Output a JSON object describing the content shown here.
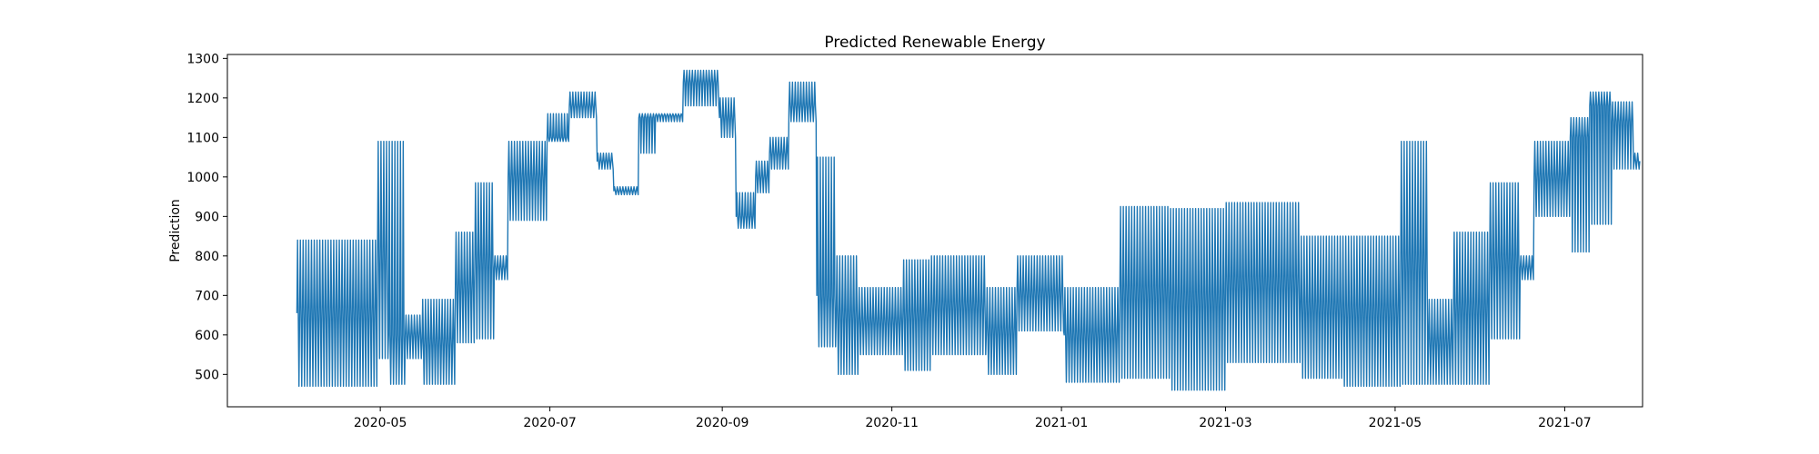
{
  "chart_data": {
    "type": "line",
    "title": "Predicted Renewable Energy",
    "xlabel": "",
    "ylabel": "Prediction",
    "grid": false,
    "color": "#1f77b4",
    "xlim": [
      "2020-03-07",
      "2021-07-29"
    ],
    "ylim": [
      418,
      1310
    ],
    "xticks": [
      "2020-05",
      "2020-07",
      "2020-09",
      "2020-11",
      "2021-01",
      "2021-03",
      "2021-05",
      "2021-07"
    ],
    "yticks": [
      500,
      600,
      700,
      800,
      900,
      1000,
      1100,
      1200,
      1300
    ],
    "series": [
      {
        "segments": [
          {
            "start": "2020-04-01",
            "end": "2020-04-30",
            "low": 470,
            "high": 840
          },
          {
            "start": "2020-04-30",
            "end": "2020-05-04",
            "low": 540,
            "high": 1090,
            "base": 800
          },
          {
            "start": "2020-05-04",
            "end": "2020-05-10",
            "low": 475,
            "high": 1090,
            "base": 600
          },
          {
            "start": "2020-05-10",
            "end": "2020-05-16",
            "low": 540,
            "high": 650,
            "base": 600
          },
          {
            "start": "2020-05-16",
            "end": "2020-05-28",
            "low": 475,
            "high": 690
          },
          {
            "start": "2020-05-28",
            "end": "2020-06-04",
            "low": 580,
            "high": 860
          },
          {
            "start": "2020-06-04",
            "end": "2020-06-11",
            "low": 590,
            "high": 985
          },
          {
            "start": "2020-06-11",
            "end": "2020-06-16",
            "low": 740,
            "high": 800,
            "base": 770
          },
          {
            "start": "2020-06-16",
            "end": "2020-06-30",
            "low": 890,
            "high": 1090,
            "base": 1000
          },
          {
            "start": "2020-06-30",
            "end": "2020-07-08",
            "low": 1090,
            "high": 1160,
            "base": 1100
          },
          {
            "start": "2020-07-08",
            "end": "2020-07-18",
            "low": 1150,
            "high": 1215,
            "base": 1180
          },
          {
            "start": "2020-07-18",
            "end": "2020-07-24",
            "low": 1020,
            "high": 1060,
            "base": 1040
          },
          {
            "start": "2020-07-24",
            "end": "2020-08-02",
            "low": 955,
            "high": 975,
            "base": 965
          },
          {
            "start": "2020-08-02",
            "end": "2020-08-08",
            "low": 1060,
            "high": 1160,
            "base": 1150
          },
          {
            "start": "2020-08-08",
            "end": "2020-08-18",
            "low": 1140,
            "high": 1160,
            "base": 1155
          },
          {
            "start": "2020-08-18",
            "end": "2020-08-31",
            "low": 1180,
            "high": 1270,
            "base": 1240
          },
          {
            "start": "2020-08-31",
            "end": "2020-09-06",
            "low": 1100,
            "high": 1200,
            "base": 1150
          },
          {
            "start": "2020-09-06",
            "end": "2020-09-13",
            "low": 870,
            "high": 960,
            "base": 900
          },
          {
            "start": "2020-09-13",
            "end": "2020-09-18",
            "low": 960,
            "high": 1040,
            "base": 1000
          },
          {
            "start": "2020-09-18",
            "end": "2020-09-25",
            "low": 1020,
            "high": 1100,
            "base": 1060
          },
          {
            "start": "2020-09-25",
            "end": "2020-10-05",
            "low": 1140,
            "high": 1240,
            "base": 1180
          },
          {
            "start": "2020-10-05",
            "end": "2020-10-12",
            "low": 570,
            "high": 1050,
            "base": 700
          },
          {
            "start": "2020-10-12",
            "end": "2020-10-20",
            "low": 500,
            "high": 800
          },
          {
            "start": "2020-10-20",
            "end": "2020-11-05",
            "low": 550,
            "high": 720
          },
          {
            "start": "2020-11-05",
            "end": "2020-11-15",
            "low": 510,
            "high": 790
          },
          {
            "start": "2020-11-15",
            "end": "2020-12-05",
            "low": 550,
            "high": 800
          },
          {
            "start": "2020-12-05",
            "end": "2020-12-16",
            "low": 500,
            "high": 720
          },
          {
            "start": "2020-12-16",
            "end": "2021-01-02",
            "low": 610,
            "high": 800
          },
          {
            "start": "2021-01-02",
            "end": "2021-01-22",
            "low": 480,
            "high": 720
          },
          {
            "start": "2021-01-22",
            "end": "2021-02-09",
            "low": 490,
            "high": 925
          },
          {
            "start": "2021-02-09",
            "end": "2021-03-01",
            "low": 460,
            "high": 920
          },
          {
            "start": "2021-03-01",
            "end": "2021-03-28",
            "low": 530,
            "high": 935
          },
          {
            "start": "2021-03-28",
            "end": "2021-04-12",
            "low": 490,
            "high": 850
          },
          {
            "start": "2021-04-12",
            "end": "2021-05-03",
            "low": 470,
            "high": 850
          },
          {
            "start": "2021-05-03",
            "end": "2021-05-13",
            "low": 475,
            "high": 1090
          },
          {
            "start": "2021-05-13",
            "end": "2021-05-22",
            "low": 475,
            "high": 690
          },
          {
            "start": "2021-05-22",
            "end": "2021-06-04",
            "low": 475,
            "high": 860
          },
          {
            "start": "2021-06-04",
            "end": "2021-06-15",
            "low": 590,
            "high": 985
          },
          {
            "start": "2021-06-15",
            "end": "2021-06-20",
            "low": 740,
            "high": 800,
            "base": 770
          },
          {
            "start": "2021-06-20",
            "end": "2021-07-03",
            "low": 900,
            "high": 1090,
            "base": 1000
          },
          {
            "start": "2021-07-03",
            "end": "2021-07-10",
            "low": 810,
            "high": 1150,
            "base": 1100
          },
          {
            "start": "2021-07-10",
            "end": "2021-07-18",
            "low": 880,
            "high": 1215,
            "base": 1180
          },
          {
            "start": "2021-07-18",
            "end": "2021-07-26",
            "low": 1020,
            "high": 1190,
            "base": 1140
          },
          {
            "start": "2021-07-26",
            "end": "2021-07-28",
            "low": 1020,
            "high": 1060,
            "base": 1040
          }
        ]
      }
    ]
  }
}
